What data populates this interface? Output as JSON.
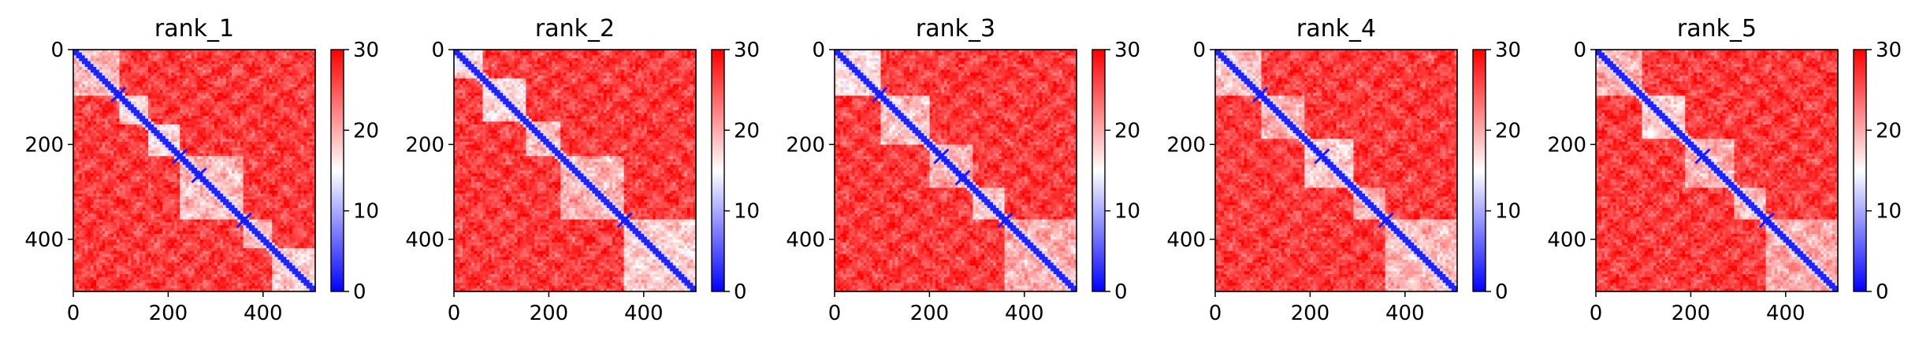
{
  "chart_data": [
    {
      "type": "heatmap",
      "title": "rank_1",
      "x_ticks": [
        "0",
        "200",
        "400"
      ],
      "x_tick_values": [
        0,
        200,
        400
      ],
      "y_ticks": [
        "0",
        "200",
        "400"
      ],
      "y_tick_values": [
        0,
        200,
        400
      ],
      "xlim": [
        0,
        510
      ],
      "ylim": [
        510,
        0
      ],
      "colorbar": {
        "min": 0,
        "max": 30,
        "ticks": [
          "0",
          "10",
          "20",
          "30"
        ],
        "tick_values": [
          0,
          10,
          20,
          30
        ],
        "colormap": "bwr"
      },
      "domain_blocks": [
        [
          0,
          100
        ],
        [
          100,
          155
        ],
        [
          155,
          225
        ],
        [
          225,
          360
        ],
        [
          360,
          420
        ],
        [
          420,
          510
        ]
      ],
      "crossings": [
        95,
        225,
        265,
        360
      ]
    },
    {
      "type": "heatmap",
      "title": "rank_2",
      "x_ticks": [
        "0",
        "200",
        "400"
      ],
      "x_tick_values": [
        0,
        200,
        400
      ],
      "y_ticks": [
        "0",
        "200",
        "400"
      ],
      "y_tick_values": [
        0,
        200,
        400
      ],
      "xlim": [
        0,
        510
      ],
      "ylim": [
        510,
        0
      ],
      "colorbar": {
        "min": 0,
        "max": 30,
        "ticks": [
          "0",
          "10",
          "20",
          "30"
        ],
        "tick_values": [
          0,
          10,
          20,
          30
        ],
        "colormap": "bwr"
      },
      "domain_blocks": [
        [
          0,
          60
        ],
        [
          60,
          150
        ],
        [
          150,
          225
        ],
        [
          225,
          360
        ],
        [
          360,
          510
        ]
      ],
      "crossings": [
        360
      ]
    },
    {
      "type": "heatmap",
      "title": "rank_3",
      "x_ticks": [
        "0",
        "200",
        "400"
      ],
      "x_tick_values": [
        0,
        200,
        400
      ],
      "y_ticks": [
        "0",
        "200",
        "400"
      ],
      "y_tick_values": [
        0,
        200,
        400
      ],
      "xlim": [
        0,
        510
      ],
      "ylim": [
        510,
        0
      ],
      "colorbar": {
        "min": 0,
        "max": 30,
        "ticks": [
          "0",
          "10",
          "20",
          "30"
        ],
        "tick_values": [
          0,
          10,
          20,
          30
        ],
        "colormap": "bwr"
      },
      "domain_blocks": [
        [
          0,
          100
        ],
        [
          100,
          200
        ],
        [
          200,
          290
        ],
        [
          290,
          360
        ],
        [
          360,
          510
        ]
      ],
      "crossings": [
        95,
        225,
        270,
        360
      ]
    },
    {
      "type": "heatmap",
      "title": "rank_4",
      "x_ticks": [
        "0",
        "200",
        "400"
      ],
      "x_tick_values": [
        0,
        200,
        400
      ],
      "y_ticks": [
        "0",
        "200",
        "400"
      ],
      "y_tick_values": [
        0,
        200,
        400
      ],
      "xlim": [
        0,
        510
      ],
      "ylim": [
        510,
        0
      ],
      "colorbar": {
        "min": 0,
        "max": 30,
        "ticks": [
          "0",
          "10",
          "20",
          "30"
        ],
        "tick_values": [
          0,
          10,
          20,
          30
        ],
        "colormap": "bwr"
      },
      "domain_blocks": [
        [
          0,
          100
        ],
        [
          100,
          190
        ],
        [
          190,
          290
        ],
        [
          290,
          360
        ],
        [
          360,
          510
        ]
      ],
      "crossings": [
        95,
        225,
        360
      ]
    },
    {
      "type": "heatmap",
      "title": "rank_5",
      "x_ticks": [
        "0",
        "200",
        "400"
      ],
      "x_tick_values": [
        0,
        200,
        400
      ],
      "y_ticks": [
        "0",
        "200",
        "400"
      ],
      "y_tick_values": [
        0,
        200,
        400
      ],
      "xlim": [
        0,
        510
      ],
      "ylim": [
        510,
        0
      ],
      "colorbar": {
        "min": 0,
        "max": 30,
        "ticks": [
          "0",
          "10",
          "20",
          "30"
        ],
        "tick_values": [
          0,
          10,
          20,
          30
        ],
        "colormap": "bwr"
      },
      "domain_blocks": [
        [
          0,
          100
        ],
        [
          100,
          190
        ],
        [
          190,
          290
        ],
        [
          290,
          360
        ],
        [
          360,
          510
        ]
      ],
      "crossings": [
        225,
        360
      ]
    }
  ]
}
